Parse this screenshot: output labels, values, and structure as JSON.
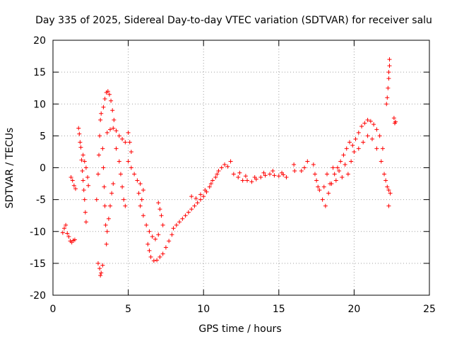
{
  "chart_data": {
    "type": "scatter",
    "title": "Day 335 of 2025, Sidereal Day-to-day VTEC variation (SDTVAR) for receiver salu",
    "xlabel": "GPS time / hours",
    "ylabel": "SDTVAR / TECUs",
    "xlim": [
      0,
      25
    ],
    "ylim": [
      -20,
      20
    ],
    "xticks": [
      0,
      5,
      10,
      15,
      20,
      25
    ],
    "yticks": [
      -20,
      -15,
      -10,
      -5,
      0,
      5,
      10,
      15,
      20
    ],
    "grid": true,
    "marker": "+",
    "color": "#ff0000",
    "series": [
      {
        "name": "SDTVAR",
        "points": [
          [
            0.65,
            -10.2
          ],
          [
            0.75,
            -9.5
          ],
          [
            0.85,
            -9.0
          ],
          [
            0.95,
            -10.3
          ],
          [
            1.05,
            -10.8
          ],
          [
            1.15,
            -11.5
          ],
          [
            1.25,
            -11.7
          ],
          [
            1.35,
            -11.4
          ],
          [
            1.45,
            -11.3
          ],
          [
            1.2,
            -1.5
          ],
          [
            1.3,
            -2.0
          ],
          [
            1.4,
            -2.8
          ],
          [
            1.5,
            -3.3
          ],
          [
            1.7,
            6.2
          ],
          [
            1.75,
            5.3
          ],
          [
            1.8,
            4.0
          ],
          [
            1.85,
            3.2
          ],
          [
            1.9,
            1.2
          ],
          [
            1.95,
            -0.5
          ],
          [
            2.0,
            -2.0
          ],
          [
            2.05,
            -3.5
          ],
          [
            2.1,
            -5.0
          ],
          [
            2.15,
            -7.0
          ],
          [
            2.2,
            -8.5
          ],
          [
            2.0,
            2.0
          ],
          [
            2.1,
            1.0
          ],
          [
            2.2,
            0.0
          ],
          [
            2.3,
            -1.5
          ],
          [
            2.35,
            -2.8
          ],
          [
            3.0,
            -15.0
          ],
          [
            3.1,
            -15.8
          ],
          [
            3.2,
            -16.5
          ],
          [
            3.3,
            -15.3
          ],
          [
            3.15,
            -16.9
          ],
          [
            2.9,
            -5.0
          ],
          [
            3.0,
            -1.0
          ],
          [
            3.05,
            2.0
          ],
          [
            3.1,
            5.0
          ],
          [
            3.15,
            7.5
          ],
          [
            3.2,
            8.5
          ],
          [
            3.3,
            3.0
          ],
          [
            3.35,
            0.0
          ],
          [
            3.4,
            -3.0
          ],
          [
            3.45,
            -6.0
          ],
          [
            3.5,
            -9.0
          ],
          [
            3.55,
            -12.0
          ],
          [
            3.35,
            9.5
          ],
          [
            3.45,
            10.8
          ],
          [
            3.55,
            11.8
          ],
          [
            3.65,
            12.0
          ],
          [
            3.75,
            11.5
          ],
          [
            3.85,
            10.5
          ],
          [
            3.95,
            9.0
          ],
          [
            4.05,
            7.5
          ],
          [
            3.6,
            -10.0
          ],
          [
            3.7,
            -8.0
          ],
          [
            3.8,
            -6.0
          ],
          [
            3.9,
            -4.0
          ],
          [
            4.0,
            -2.5
          ],
          [
            3.6,
            5.5
          ],
          [
            3.8,
            6.0
          ],
          [
            4.0,
            6.2
          ],
          [
            4.2,
            5.8
          ],
          [
            4.4,
            5.0
          ],
          [
            4.6,
            4.5
          ],
          [
            4.8,
            4.0
          ],
          [
            5.0,
            5.5
          ],
          [
            5.1,
            4.0
          ],
          [
            5.2,
            2.5
          ],
          [
            4.2,
            3.0
          ],
          [
            4.4,
            1.0
          ],
          [
            4.5,
            -1.0
          ],
          [
            4.6,
            -3.0
          ],
          [
            4.7,
            -5.0
          ],
          [
            4.8,
            -6.0
          ],
          [
            5.0,
            1.0
          ],
          [
            5.2,
            0.0
          ],
          [
            5.4,
            -1.0
          ],
          [
            5.6,
            -2.0
          ],
          [
            5.8,
            -2.5
          ],
          [
            6.0,
            -3.5
          ],
          [
            5.7,
            -4.0
          ],
          [
            5.9,
            -5.0
          ],
          [
            5.8,
            -6.0
          ],
          [
            6.0,
            -7.5
          ],
          [
            6.2,
            -9.0
          ],
          [
            6.4,
            -10.0
          ],
          [
            6.6,
            -10.8
          ],
          [
            6.8,
            -11.2
          ],
          [
            7.0,
            -10.5
          ],
          [
            6.3,
            -12.0
          ],
          [
            6.4,
            -13.0
          ],
          [
            6.5,
            -14.0
          ],
          [
            6.7,
            -14.6
          ],
          [
            6.9,
            -14.5
          ],
          [
            7.1,
            -14.0
          ],
          [
            7.3,
            -13.5
          ],
          [
            7.5,
            -12.5
          ],
          [
            7.7,
            -11.5
          ],
          [
            7.9,
            -10.5
          ],
          [
            7.0,
            -5.5
          ],
          [
            7.1,
            -6.5
          ],
          [
            7.2,
            -7.5
          ],
          [
            7.3,
            -9.0
          ],
          [
            8.0,
            -9.5
          ],
          [
            8.2,
            -9.0
          ],
          [
            8.4,
            -8.5
          ],
          [
            8.6,
            -8.0
          ],
          [
            8.8,
            -7.5
          ],
          [
            9.0,
            -7.0
          ],
          [
            9.2,
            -6.5
          ],
          [
            9.4,
            -6.0
          ],
          [
            9.6,
            -5.5
          ],
          [
            9.8,
            -5.0
          ],
          [
            10.0,
            -4.5
          ],
          [
            10.2,
            -3.8
          ],
          [
            10.4,
            -3.0
          ],
          [
            10.6,
            -2.0
          ],
          [
            10.8,
            -1.5
          ],
          [
            11.0,
            -0.5
          ],
          [
            11.2,
            0.0
          ],
          [
            11.4,
            0.5
          ],
          [
            11.6,
            0.2
          ],
          [
            11.8,
            1.0
          ],
          [
            9.2,
            -4.5
          ],
          [
            9.5,
            -4.8
          ],
          [
            9.8,
            -4.2
          ],
          [
            10.1,
            -3.5
          ],
          [
            10.5,
            -2.5
          ],
          [
            10.9,
            -1.0
          ],
          [
            12.0,
            -1.0
          ],
          [
            12.3,
            -1.5
          ],
          [
            12.6,
            -2.0
          ],
          [
            12.9,
            -2.0
          ],
          [
            13.2,
            -2.2
          ],
          [
            13.5,
            -1.8
          ],
          [
            13.8,
            -1.5
          ],
          [
            14.1,
            -1.2
          ],
          [
            14.4,
            -1.0
          ],
          [
            14.7,
            -1.2
          ],
          [
            15.0,
            -1.3
          ],
          [
            15.3,
            -1.1
          ],
          [
            15.5,
            -1.5
          ],
          [
            12.4,
            -0.8
          ],
          [
            12.8,
            -1.3
          ],
          [
            13.4,
            -1.5
          ],
          [
            14.0,
            -0.8
          ],
          [
            14.6,
            -0.5
          ],
          [
            15.2,
            -0.8
          ],
          [
            16.0,
            0.5
          ],
          [
            16.05,
            -0.5
          ],
          [
            16.5,
            -0.5
          ],
          [
            16.7,
            0.0
          ],
          [
            16.9,
            1.0
          ],
          [
            17.3,
            0.5
          ],
          [
            17.4,
            -1.0
          ],
          [
            17.5,
            -2.0
          ],
          [
            17.6,
            -3.0
          ],
          [
            17.7,
            -3.5
          ],
          [
            17.9,
            -5.0
          ],
          [
            18.1,
            -6.0
          ],
          [
            18.3,
            -4.0
          ],
          [
            18.5,
            -2.5
          ],
          [
            18.7,
            -1.0
          ],
          [
            18.9,
            0.0
          ],
          [
            19.1,
            1.0
          ],
          [
            19.3,
            2.0
          ],
          [
            19.5,
            3.0
          ],
          [
            19.7,
            4.0
          ],
          [
            18.0,
            -3.0
          ],
          [
            18.4,
            -2.5
          ],
          [
            18.8,
            -2.0
          ],
          [
            19.2,
            -1.5
          ],
          [
            19.6,
            -1.0
          ],
          [
            18.2,
            -1.0
          ],
          [
            18.6,
            0.0
          ],
          [
            19.0,
            -0.5
          ],
          [
            19.4,
            0.5
          ],
          [
            19.8,
            1.0
          ],
          [
            19.9,
            3.5
          ],
          [
            20.1,
            4.5
          ],
          [
            20.3,
            5.5
          ],
          [
            20.5,
            6.5
          ],
          [
            20.7,
            7.0
          ],
          [
            20.9,
            7.5
          ],
          [
            21.1,
            7.3
          ],
          [
            21.3,
            6.8
          ],
          [
            21.5,
            6.0
          ],
          [
            21.7,
            5.0
          ],
          [
            21.9,
            3.0
          ],
          [
            20.0,
            2.5
          ],
          [
            20.3,
            3.0
          ],
          [
            20.6,
            4.0
          ],
          [
            20.9,
            5.0
          ],
          [
            21.2,
            4.5
          ],
          [
            21.5,
            3.0
          ],
          [
            21.8,
            1.0
          ],
          [
            22.0,
            -1.0
          ],
          [
            22.1,
            -2.0
          ],
          [
            22.2,
            -3.0
          ],
          [
            22.3,
            -3.5
          ],
          [
            22.4,
            -4.0
          ],
          [
            22.3,
            -6.0
          ],
          [
            22.15,
            10.0
          ],
          [
            22.2,
            11.0
          ],
          [
            22.25,
            12.5
          ],
          [
            22.3,
            14.0
          ],
          [
            22.3,
            15.0
          ],
          [
            22.35,
            16.0
          ],
          [
            22.35,
            17.0
          ],
          [
            22.65,
            7.8
          ],
          [
            22.7,
            7.0
          ],
          [
            22.75,
            7.2
          ]
        ]
      }
    ]
  }
}
